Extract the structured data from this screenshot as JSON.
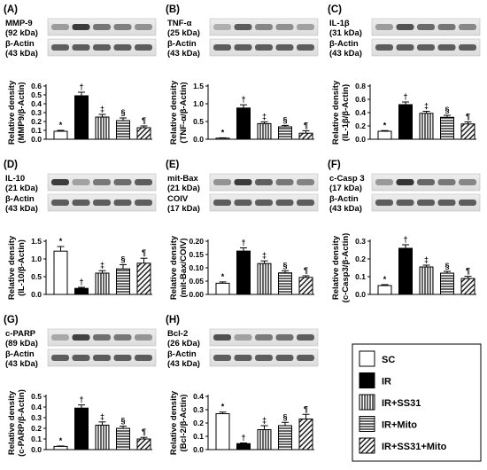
{
  "figure": {
    "legend": [
      {
        "label": "SC",
        "pattern": "white"
      },
      {
        "label": "IR",
        "pattern": "black"
      },
      {
        "label": "IR+SS31",
        "pattern": "vlines"
      },
      {
        "label": "IR+Mito",
        "pattern": "hlines"
      },
      {
        "label": "IR+SS31+Mito",
        "pattern": "diag"
      }
    ]
  },
  "chart_data": [
    {
      "panel": "(A)",
      "type": "bar",
      "blot_labels": [
        {
          "name": "MMP-9",
          "kda": "(92 kDa)"
        },
        {
          "name": "β-Actin",
          "kda": "(43 kDa)"
        }
      ],
      "ylabel": [
        "Relative density",
        "(MMP9/β-Actin)"
      ],
      "ylim": [
        0,
        0.6
      ],
      "yticks": [
        "0.0",
        "0.1",
        "0.2",
        "0.3",
        "0.4",
        "0.5",
        "0.6"
      ],
      "categories": [
        "SC",
        "IR",
        "IR+SS31",
        "IR+Mito",
        "IR+SS31+Mito"
      ],
      "values": [
        0.09,
        0.49,
        0.25,
        0.21,
        0.13
      ],
      "errors": [
        0.01,
        0.04,
        0.03,
        0.03,
        0.02
      ],
      "annotations": [
        "*",
        "†",
        "‡",
        "§",
        "¶"
      ]
    },
    {
      "panel": "(B)",
      "type": "bar",
      "blot_labels": [
        {
          "name": "TNF-α",
          "kda": "(25 kDa)"
        },
        {
          "name": "β-Actin",
          "kda": "(43 kDa)"
        }
      ],
      "ylabel": [
        "Relative density",
        "(TNF-α/β-Actin)"
      ],
      "ylim": [
        0,
        1.5
      ],
      "yticks": [
        "0.0",
        "0.5",
        "1.0",
        "1.5"
      ],
      "categories": [
        "SC",
        "IR",
        "IR+SS31",
        "IR+Mito",
        "IR+SS31+Mito"
      ],
      "values": [
        0.03,
        0.88,
        0.44,
        0.35,
        0.17
      ],
      "errors": [
        0.01,
        0.09,
        0.05,
        0.04,
        0.07
      ],
      "annotations": [
        "*",
        "†",
        "‡",
        "§",
        "¶"
      ]
    },
    {
      "panel": "(C)",
      "type": "bar",
      "blot_labels": [
        {
          "name": "IL-1β",
          "kda": "(31 kDa)"
        },
        {
          "name": "β-Actin",
          "kda": "(43 kDa)"
        }
      ],
      "ylabel": [
        "Relative density",
        "(IL-1β/β-Actin)"
      ],
      "ylim": [
        0,
        0.8
      ],
      "yticks": [
        "0.0",
        "0.2",
        "0.4",
        "0.6",
        "0.8"
      ],
      "categories": [
        "SC",
        "IR",
        "IR+SS31",
        "IR+Mito",
        "IR+SS31+Mito"
      ],
      "values": [
        0.12,
        0.52,
        0.39,
        0.33,
        0.23
      ],
      "errors": [
        0.01,
        0.04,
        0.03,
        0.03,
        0.03
      ],
      "annotations": [
        "*",
        "†",
        "‡",
        "§",
        "¶"
      ]
    },
    {
      "panel": "(D)",
      "type": "bar",
      "blot_labels": [
        {
          "name": "IL-10",
          "kda": "(21 kDa)"
        },
        {
          "name": "β-Actin",
          "kda": "(43 kDa)"
        }
      ],
      "ylabel": [
        "Relative density",
        "(IL-10/β-Actin)"
      ],
      "ylim": [
        0,
        1.5
      ],
      "yticks": [
        "0.0",
        "0.5",
        "1.0",
        "1.5"
      ],
      "categories": [
        "SC",
        "IR",
        "IR+SS31",
        "IR+Mito",
        "IR+SS31+Mito"
      ],
      "values": [
        1.22,
        0.17,
        0.6,
        0.72,
        0.88
      ],
      "errors": [
        0.13,
        0.03,
        0.07,
        0.12,
        0.14
      ],
      "annotations": [
        "*",
        "†",
        "‡",
        "§",
        "¶"
      ]
    },
    {
      "panel": "(E)",
      "type": "bar",
      "blot_labels": [
        {
          "name": "mit-Bax",
          "kda": "(21 kDa)"
        },
        {
          "name": "COIV",
          "kda": "(17 kDa)"
        }
      ],
      "ylabel": [
        "Relative density",
        "(mit-Bax/COIV)"
      ],
      "ylim": [
        0,
        0.2
      ],
      "yticks": [
        "0.00",
        "0.05",
        "0.10",
        "0.15",
        "0.20"
      ],
      "categories": [
        "SC",
        "IR",
        "IR+SS31",
        "IR+Mito",
        "IR+SS31+Mito"
      ],
      "values": [
        0.042,
        0.163,
        0.116,
        0.081,
        0.064
      ],
      "errors": [
        0.005,
        0.012,
        0.01,
        0.008,
        0.006
      ],
      "annotations": [
        "*",
        "†",
        "‡",
        "§",
        "¶"
      ]
    },
    {
      "panel": "(F)",
      "type": "bar",
      "blot_labels": [
        {
          "name": "c-Casp 3",
          "kda": "(17 kDa)"
        },
        {
          "name": "β-Actin",
          "kda": "(43 kDa)"
        }
      ],
      "ylabel": [
        "Relative density",
        "(c-Casp3/β-Actin)"
      ],
      "ylim": [
        0,
        0.3
      ],
      "yticks": [
        "0.0",
        "0.1",
        "0.2",
        "0.3"
      ],
      "categories": [
        "SC",
        "IR",
        "IR+SS31",
        "IR+Mito",
        "IR+SS31+Mito"
      ],
      "values": [
        0.05,
        0.26,
        0.155,
        0.12,
        0.09
      ],
      "errors": [
        0.005,
        0.02,
        0.01,
        0.01,
        0.012
      ],
      "annotations": [
        "*",
        "†",
        "‡",
        "§",
        "¶"
      ]
    },
    {
      "panel": "(G)",
      "type": "bar",
      "blot_labels": [
        {
          "name": "c-PARP",
          "kda": "(89 kDa)"
        },
        {
          "name": "β-Actin",
          "kda": "(43 kDa)"
        }
      ],
      "ylabel": [
        "Relative density",
        "(c-PARP/β-Actin)"
      ],
      "ylim": [
        0,
        0.5
      ],
      "yticks": [
        "0.0",
        "0.1",
        "0.2",
        "0.3",
        "0.4",
        "0.5"
      ],
      "categories": [
        "SC",
        "IR",
        "IR+SS31",
        "IR+Mito",
        "IR+SS31+Mito"
      ],
      "values": [
        0.03,
        0.39,
        0.23,
        0.2,
        0.1
      ],
      "errors": [
        0.004,
        0.03,
        0.03,
        0.02,
        0.015
      ],
      "annotations": [
        "*",
        "†",
        "‡",
        "§",
        "¶"
      ]
    },
    {
      "panel": "(H)",
      "type": "bar",
      "blot_labels": [
        {
          "name": "Bcl-2",
          "kda": "(26 kDa)"
        },
        {
          "name": "β-Actin",
          "kda": "(43 kDa)"
        }
      ],
      "ylabel": [
        "Relative density",
        "(Bcl-2/β-Actin)"
      ],
      "ylim": [
        0,
        0.4
      ],
      "yticks": [
        "0.0",
        "0.1",
        "0.2",
        "0.3",
        "0.4"
      ],
      "categories": [
        "SC",
        "IR",
        "IR+SS31",
        "IR+Mito",
        "IR+SS31+Mito"
      ],
      "values": [
        0.27,
        0.045,
        0.15,
        0.18,
        0.23
      ],
      "errors": [
        0.012,
        0.005,
        0.03,
        0.025,
        0.035
      ],
      "annotations": [
        "*",
        "†",
        "‡",
        "§",
        "¶"
      ]
    }
  ]
}
